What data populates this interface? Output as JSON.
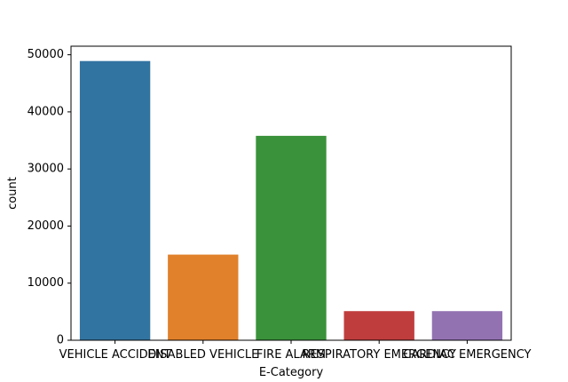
{
  "chart_data": {
    "type": "bar",
    "xlabel": "E-Category",
    "ylabel": "count",
    "categories": [
      "VEHICLE ACCIDENT",
      "DISABLED VEHICLE",
      "FIRE ALARM",
      "RESPIRATORY EMERGENCY",
      "CARDIAC EMERGENCY"
    ],
    "values": [
      48900,
      15000,
      35800,
      5100,
      5100
    ],
    "colors": [
      "#3274a1",
      "#e1812c",
      "#3a923a",
      "#c03d3e",
      "#9372b2"
    ],
    "ylim": [
      0,
      51500
    ],
    "yticks": [
      0,
      10000,
      20000,
      30000,
      40000,
      50000
    ],
    "ytick_labels": [
      "0",
      "10000",
      "20000",
      "30000",
      "40000",
      "50000"
    ],
    "grid": false,
    "legend": false
  }
}
